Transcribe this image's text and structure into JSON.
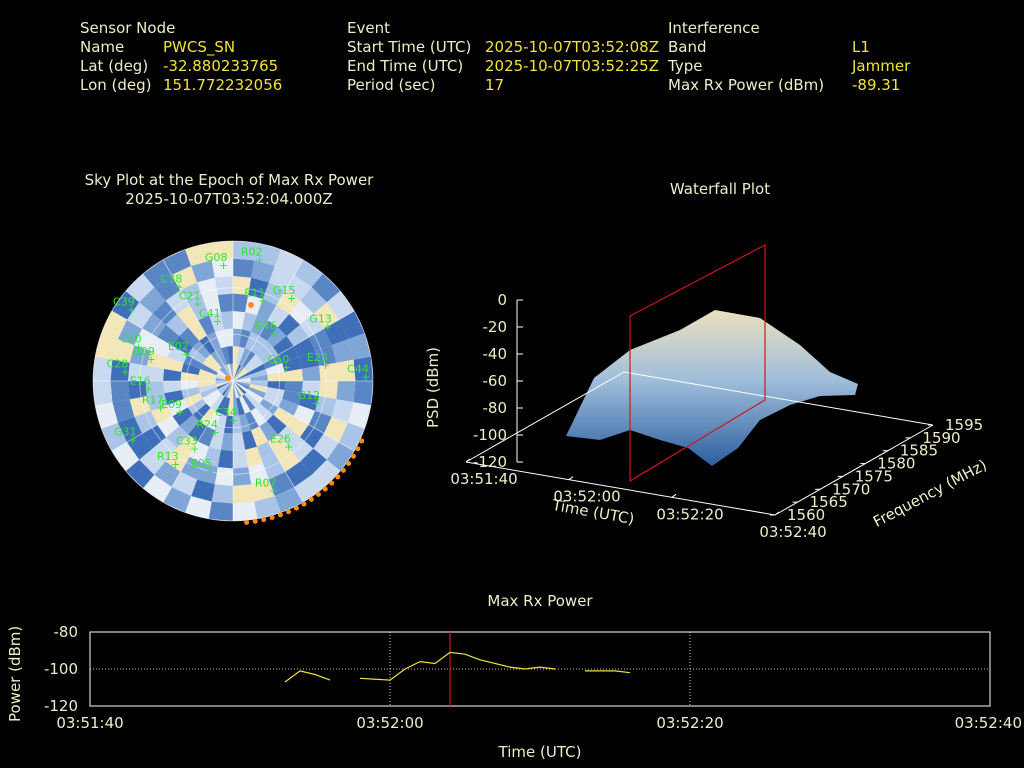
{
  "header": {
    "sensor": {
      "heading": "Sensor Node",
      "name_label": "Name",
      "name_value": "PWCS_SN",
      "lat_label": "Lat (deg)",
      "lat_value": "-32.880233765",
      "lon_label": "Lon (deg)",
      "lon_value": "151.772232056"
    },
    "event": {
      "heading": "Event",
      "start_label": "Start Time (UTC)",
      "start_value": "2025-10-07T03:52:08Z",
      "end_label": "End Time (UTC)",
      "end_value": "2025-10-07T03:52:25Z",
      "period_label": "Period (sec)",
      "period_value": "17"
    },
    "interference": {
      "heading": "Interference",
      "band_label": "Band",
      "band_value": "L1",
      "type_label": "Type",
      "type_value": "Jammer",
      "power_label": "Max Rx Power (dBm)",
      "power_value": "-89.31"
    }
  },
  "chart_data": [
    {
      "type": "scatter",
      "title": "Sky Plot at the Epoch of Max Rx Power",
      "subtitle": "2025-10-07T03:52:04.000Z",
      "projection": "polar",
      "satellites": [
        {
          "name": "C38",
          "az": 330,
          "el": 20
        },
        {
          "name": "G08",
          "az": 355,
          "el": 15
        },
        {
          "name": "R02",
          "az": 12,
          "el": 10
        },
        {
          "name": "C39",
          "az": 305,
          "el": 10
        },
        {
          "name": "C21",
          "az": 335,
          "el": 35
        },
        {
          "name": "G15",
          "az": 35,
          "el": 25
        },
        {
          "name": "E11",
          "az": 20,
          "el": 35
        },
        {
          "name": "C41",
          "az": 345,
          "el": 50
        },
        {
          "name": "C46",
          "az": 40,
          "el": 50
        },
        {
          "name": "G13",
          "az": 60,
          "el": 20
        },
        {
          "name": "C60",
          "az": 290,
          "el": 25
        },
        {
          "name": "G09",
          "az": 285,
          "el": 35
        },
        {
          "name": "C28",
          "az": 275,
          "el": 20
        },
        {
          "name": "C50",
          "az": 75,
          "el": 55
        },
        {
          "name": "E23",
          "az": 80,
          "el": 30
        },
        {
          "name": "C44",
          "az": 88,
          "el": 5
        },
        {
          "name": "E16",
          "az": 265,
          "el": 35
        },
        {
          "name": "R17",
          "az": 250,
          "el": 40
        },
        {
          "name": "E09",
          "az": 240,
          "el": 50
        },
        {
          "name": "R24",
          "az": 200,
          "el": 55
        },
        {
          "name": "G12",
          "az": 105,
          "el": 35
        },
        {
          "name": "E26",
          "az": 140,
          "el": 35
        },
        {
          "name": "R07",
          "az": 160,
          "el": 15
        },
        {
          "name": "C33",
          "az": 210,
          "el": 40
        },
        {
          "name": "E05",
          "az": 195,
          "el": 30
        },
        {
          "name": "G31",
          "az": 240,
          "el": 15
        },
        {
          "name": "R13",
          "az": 215,
          "el": 25
        },
        {
          "name": "C34",
          "az": 180,
          "el": 65
        },
        {
          "name": "E02",
          "az": 300,
          "el": 55
        }
      ]
    },
    {
      "type": "area",
      "title": "Waterfall Plot",
      "xlabel": "Time (UTC)",
      "ylabel": "Frequency (MHz)",
      "zlabel": "PSD (dBm)",
      "x_ticks": [
        "03:51:40",
        "03:52:00",
        "03:52:20",
        "03:52:40"
      ],
      "y_ticks": [
        "1560",
        "1565",
        "1570",
        "1575",
        "1580",
        "1585",
        "1590",
        "1595"
      ],
      "z_ticks": [
        "0",
        "-20",
        "-40",
        "-60",
        "-80",
        "-100",
        "-120"
      ],
      "zlim": [
        -120,
        0
      ],
      "marker_time": "03:52:04"
    },
    {
      "type": "line",
      "title": "Max Rx Power",
      "xlabel": "Time (UTC)",
      "ylabel": "Power (dBm)",
      "x_ticks": [
        "03:51:40",
        "03:52:00",
        "03:52:20",
        "03:52:40"
      ],
      "y_ticks": [
        "-80",
        "-100",
        "-120"
      ],
      "ylim": [
        -120,
        -80
      ],
      "xlim_seconds": [
        0,
        60
      ],
      "marker_second": 24,
      "grid": true,
      "series": [
        {
          "points": [
            [
              13,
              -107
            ],
            [
              14,
              -101
            ],
            [
              15,
              -103
            ],
            [
              16,
              -106
            ]
          ]
        },
        {
          "points": [
            [
              18,
              -105
            ],
            [
              20,
              -106
            ],
            [
              21,
              -100
            ],
            [
              22,
              -96
            ],
            [
              23,
              -97
            ],
            [
              24,
              -91
            ],
            [
              25,
              -92
            ],
            [
              26,
              -95
            ],
            [
              28,
              -99
            ],
            [
              29,
              -100
            ],
            [
              30,
              -99
            ],
            [
              31,
              -100
            ]
          ]
        },
        {
          "points": [
            [
              33,
              -101
            ],
            [
              35,
              -101
            ],
            [
              36,
              -102
            ]
          ]
        }
      ]
    }
  ]
}
